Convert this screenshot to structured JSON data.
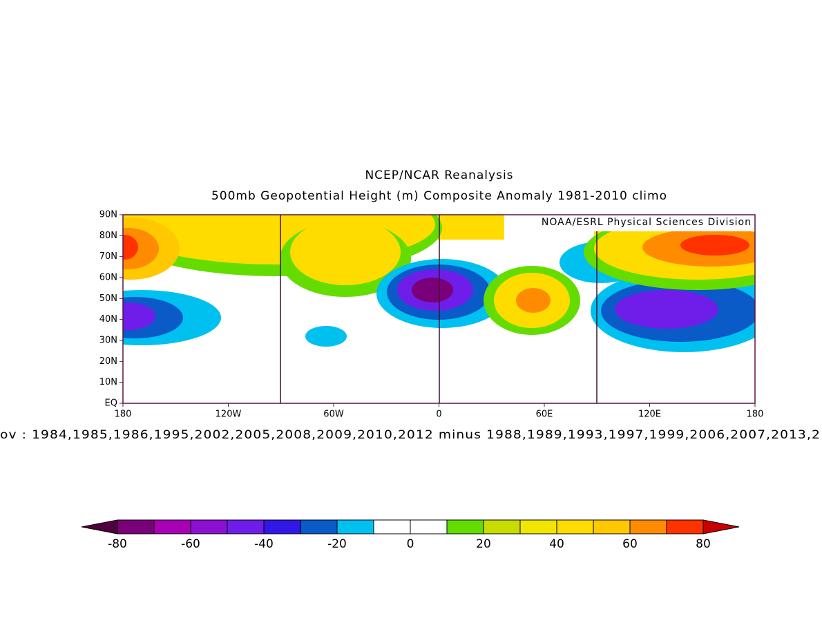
{
  "map": {
    "title": "NCEP/NCAR Reanalysis",
    "subtitle": "500mb Geopotential Height (m) Composite Anomaly 1981-2010 climo",
    "credit": "NOAA/ESRL Physical Sciences Division",
    "footer": "ov : 1984,1985,1986,1995,2002,2005,2008,2009,2010,2012 minus 1988,1989,1993,1997,1999,2006,2007,2013,2",
    "xlim": [
      -180,
      180
    ],
    "xticks": [
      {
        "value": -180,
        "label": "180"
      },
      {
        "value": -120,
        "label": "120W"
      },
      {
        "value": -60,
        "label": "60W"
      },
      0,
      {
        "value": 60,
        "label": "60E"
      },
      {
        "value": 120,
        "label": "120E"
      },
      180
    ],
    "ylim": [
      0,
      90
    ],
    "yticks": [
      {
        "value": 0,
        "label": "EQ"
      },
      {
        "value": 10,
        "label": "10N"
      },
      {
        "value": 20,
        "label": "20N"
      },
      {
        "value": 30,
        "label": "30N"
      },
      {
        "value": 40,
        "label": "40N"
      },
      {
        "value": 50,
        "label": "50N"
      },
      {
        "value": 60,
        "label": "60N"
      },
      {
        "value": 70,
        "label": "70N"
      },
      {
        "value": 80,
        "label": "80N"
      },
      {
        "value": 90,
        "label": "90N"
      }
    ],
    "colorbar": {
      "levels": [
        -80,
        -70,
        -60,
        -50,
        -40,
        -30,
        -20,
        -10,
        0,
        10,
        20,
        30,
        40,
        50,
        60,
        70,
        80
      ],
      "colors": [
        "#50003c",
        "#7a007a",
        "#a800b4",
        "#8c10d0",
        "#6e1ee8",
        "#3218e6",
        "#0a5ac8",
        "#00c0f0",
        "#ffffff",
        "#ffffff",
        "#64dc00",
        "#c8dc00",
        "#f0e600",
        "#ffdc00",
        "#ffc800",
        "#ff8c00",
        "#ff3200",
        "#c80000"
      ],
      "ticks": [
        -80,
        -60,
        -40,
        -20,
        0,
        20,
        40,
        60,
        80
      ]
    }
  }
}
